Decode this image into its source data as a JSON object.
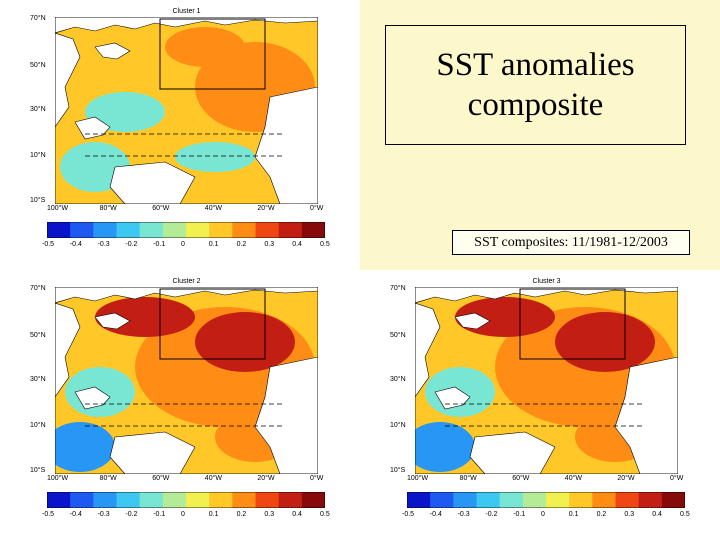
{
  "title": {
    "line1": "SST anomalies",
    "line2": "composite"
  },
  "subtitle": "SST composites: 11/1981-12/2003",
  "map_axes": {
    "lat_labels": [
      "70°N",
      "50°N",
      "30°N",
      "10°N",
      "10°S"
    ],
    "lon_labels": [
      "100°W",
      "80°W",
      "60°W",
      "40°W",
      "20°W",
      "0°W"
    ]
  },
  "colorbar": {
    "ticks": [
      "-0.5",
      "-0.4",
      "-0.3",
      "-0.2",
      "-0.1",
      "0",
      "0.1",
      "0.2",
      "0.3",
      "0.4",
      "0.5"
    ],
    "colors": [
      "#0a14c8",
      "#1e5af0",
      "#2896f5",
      "#3cc8f0",
      "#78e6d2",
      "#b4eb96",
      "#f0f050",
      "#ffc828",
      "#ff8c14",
      "#f04614",
      "#c31e14",
      "#870a0a"
    ]
  },
  "panels": [
    {
      "id": "cluster1",
      "title": "Cluster 1"
    },
    {
      "id": "cluster2",
      "title": "Cluster 2"
    },
    {
      "id": "cluster3",
      "title": "Cluster 3"
    }
  ],
  "map_colors": {
    "land": "#ffffff",
    "ocean_base": "#ffc828",
    "warm": "#ff8c14",
    "hot": "#c31e14",
    "cool": "#78e6d2",
    "cold": "#2896f5"
  }
}
